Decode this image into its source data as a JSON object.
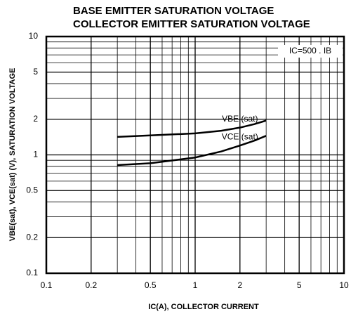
{
  "chart_data": {
    "type": "line",
    "title": [
      "BASE EMITTER SATURATION VOLTAGE",
      "COLLECTOR EMITTER SATURATION VOLTAGE"
    ],
    "x_label": "IC(A), COLLECTOR CURRENT",
    "y_label": "VBE(sat), VCE(sat) (V), SATURATION VOLTAGE",
    "annotation": "IC=500 . IB",
    "x_log": true,
    "y_log": true,
    "grid": true,
    "xlim": [
      0.1,
      10
    ],
    "ylim": [
      0.1,
      10
    ],
    "xticks": [
      0.1,
      0.2,
      0.5,
      1,
      2,
      5,
      10
    ],
    "yticks": [
      0.1,
      0.2,
      0.5,
      1,
      2,
      5,
      10
    ],
    "minor_xticks": [
      0.3,
      0.4,
      0.6,
      0.7,
      0.8,
      0.9,
      3,
      4,
      6,
      7,
      8,
      9
    ],
    "minor_yticks": [
      0.3,
      0.4,
      0.6,
      0.7,
      0.8,
      0.9,
      3,
      4,
      6,
      7,
      8,
      9
    ],
    "x": [
      0.3,
      0.5,
      1,
      1.5,
      2,
      2.5,
      3
    ],
    "series": [
      {
        "name": "VBE (sat)",
        "color": "#000000",
        "values": [
          1.42,
          1.46,
          1.52,
          1.6,
          1.7,
          1.82,
          1.95
        ]
      },
      {
        "name": "VCE (sat)",
        "color": "#000000",
        "values": [
          0.82,
          0.85,
          0.95,
          1.07,
          1.2,
          1.32,
          1.45
        ]
      }
    ]
  }
}
